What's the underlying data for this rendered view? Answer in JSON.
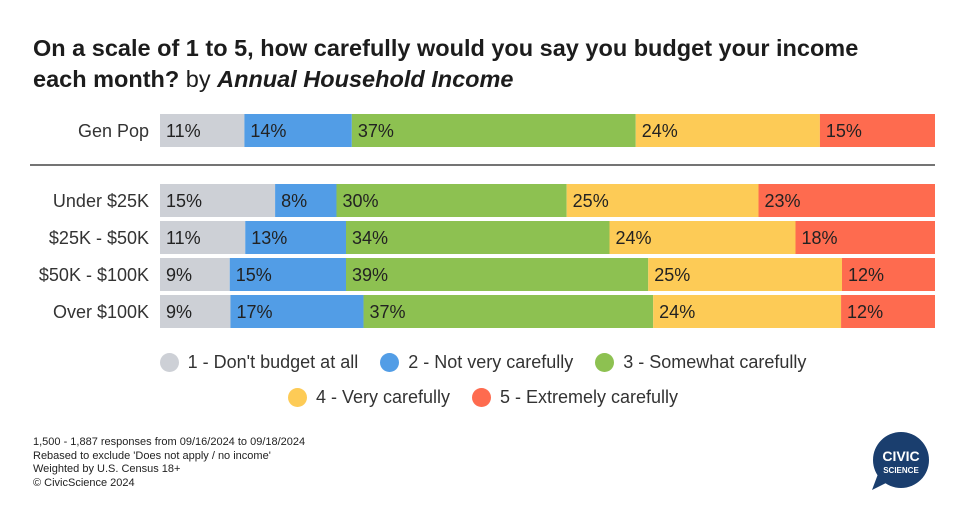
{
  "title": {
    "main": "On a scale of 1 to 5, how carefully would you say you budget your income each month?",
    "by": "by",
    "dimension": "Annual Household Income"
  },
  "colors": [
    "#cdd0d6",
    "#529de6",
    "#8dc151",
    "#fdcb56",
    "#fe6b4f"
  ],
  "chart_data": {
    "type": "bar",
    "orientation": "horizontal",
    "stacked": true,
    "normalized": true,
    "title": "On a scale of 1 to 5, how carefully would you say you budget your income each month? by Annual Household Income",
    "categories": [
      "Gen Pop",
      "Under $25K",
      "$25K - $50K",
      "$50K - $100K",
      "Over $100K"
    ],
    "series": [
      {
        "name": "1 - Don't budget at all",
        "values": [
          11,
          15,
          11,
          9,
          9
        ]
      },
      {
        "name": "2 - Not very carefully",
        "values": [
          14,
          8,
          13,
          15,
          17
        ]
      },
      {
        "name": "3 - Somewhat carefully",
        "values": [
          37,
          30,
          34,
          39,
          37
        ]
      },
      {
        "name": "4 - Very carefully",
        "values": [
          24,
          25,
          24,
          25,
          24
        ]
      },
      {
        "name": "5 - Extremely carefully",
        "values": [
          15,
          23,
          18,
          12,
          12
        ]
      }
    ],
    "value_suffix": "%",
    "legend_position": "bottom"
  },
  "footer": {
    "line1": "1,500 - 1,887 responses from 09/16/2024 to 09/18/2024",
    "line2": "Rebased to exclude 'Does not apply / no income'",
    "line3": "Weighted by U.S. Census 18+",
    "line4": "© CivicScience 2024"
  },
  "logo": {
    "top": "CIVIC",
    "bottom": "SCIENCE"
  }
}
